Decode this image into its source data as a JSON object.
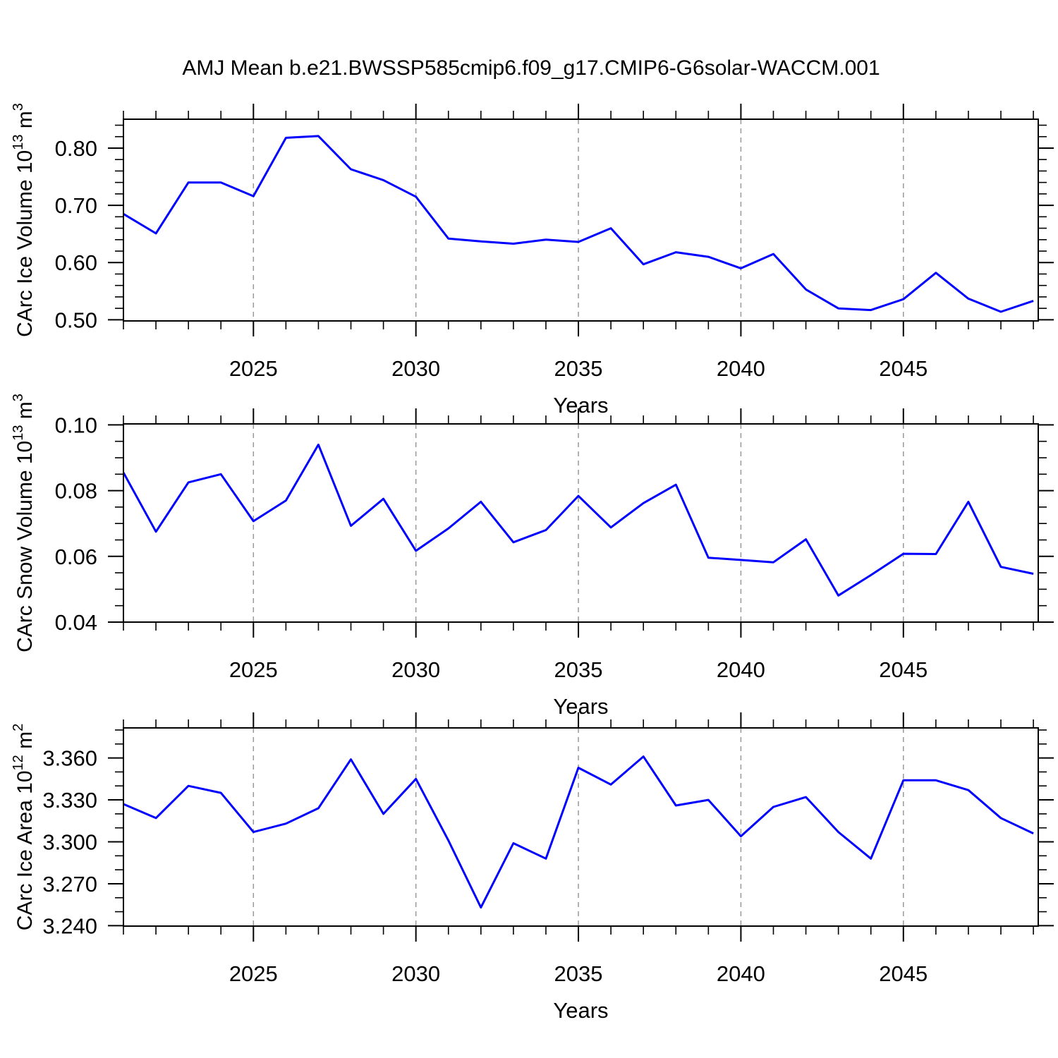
{
  "title": "AMJ Mean b.e21.BWSSP585cmip6.f09_g17.CMIP6-G6solar-WACCM.001",
  "style": {
    "line_color": "#0000ff",
    "grid_color": "#999999",
    "frame_color": "#000000",
    "background": "#ffffff"
  },
  "x_axis": {
    "label": "Years",
    "range": [
      2021,
      2049.15
    ],
    "major_ticks": [
      2025,
      2030,
      2035,
      2040,
      2045
    ],
    "major_tick_labels": [
      "2025",
      "2030",
      "2035",
      "2040",
      "2045"
    ],
    "minor_step": 1
  },
  "years": [
    2021,
    2022,
    2023,
    2024,
    2025,
    2026,
    2027,
    2028,
    2029,
    2030,
    2031,
    2032,
    2033,
    2034,
    2035,
    2036,
    2037,
    2038,
    2039,
    2040,
    2041,
    2042,
    2043,
    2044,
    2045,
    2046,
    2047,
    2048,
    2049
  ],
  "chart_data": [
    {
      "type": "line",
      "name": "ice-volume",
      "ylabel_parts": [
        {
          "t": "CArc Ice Volume 10"
        },
        {
          "t": "13",
          "sup": true
        },
        {
          "t": " m"
        },
        {
          "t": "3",
          "sup": true
        }
      ],
      "ylabel_plain": "CArc Ice Volume 10^13 m^3",
      "xlabel": "Years",
      "ylim": [
        0.498,
        0.8505
      ],
      "yticks": [
        0.5,
        0.6,
        0.7,
        0.8
      ],
      "ytick_labels": [
        "0.50",
        "0.60",
        "0.70",
        "0.80"
      ],
      "yminor_step": 0.02,
      "grid": true,
      "values": [
        0.685,
        0.651,
        0.74,
        0.74,
        0.716,
        0.818,
        0.821,
        0.763,
        0.744,
        0.715,
        0.642,
        0.637,
        0.633,
        0.64,
        0.636,
        0.66,
        0.597,
        0.618,
        0.61,
        0.59,
        0.615,
        0.553,
        0.52,
        0.517,
        0.536,
        0.582,
        0.537,
        0.514,
        0.533
      ]
    },
    {
      "type": "line",
      "name": "snow-volume",
      "ylabel_parts": [
        {
          "t": "CArc Snow Volume 10"
        },
        {
          "t": "13",
          "sup": true
        },
        {
          "t": " m"
        },
        {
          "t": "3",
          "sup": true
        }
      ],
      "ylabel_plain": "CArc Snow Volume 10^13 m^3",
      "xlabel": "Years",
      "ylim": [
        0.04,
        0.1003
      ],
      "yticks": [
        0.04,
        0.06,
        0.08,
        0.1
      ],
      "ytick_labels": [
        "0.04",
        "0.06",
        "0.08",
        "0.10"
      ],
      "yminor_step": 0.005,
      "grid": true,
      "values": [
        0.0855,
        0.0675,
        0.0825,
        0.085,
        0.0707,
        0.077,
        0.094,
        0.0693,
        0.0775,
        0.0617,
        0.0685,
        0.0766,
        0.0643,
        0.068,
        0.0784,
        0.0688,
        0.0762,
        0.0818,
        0.0596,
        0.0589,
        0.0582,
        0.0652,
        0.0481,
        0.0543,
        0.0608,
        0.0607,
        0.0766,
        0.0568,
        0.0547
      ]
    },
    {
      "type": "line",
      "name": "ice-area",
      "ylabel_parts": [
        {
          "t": "CArc Ice Area 10"
        },
        {
          "t": "12",
          "sup": true
        },
        {
          "t": " m"
        },
        {
          "t": "2",
          "sup": true
        }
      ],
      "ylabel_plain": "CArc Ice Area 10^12 m^2",
      "xlabel": "Years",
      "ylim": [
        3.2397,
        3.3815
      ],
      "yticks": [
        3.24,
        3.27,
        3.3,
        3.33,
        3.36
      ],
      "ytick_labels": [
        "3.240",
        "3.270",
        "3.300",
        "3.330",
        "3.360"
      ],
      "yminor_step": 0.01,
      "grid": true,
      "values": [
        3.327,
        3.317,
        3.34,
        3.335,
        3.307,
        3.313,
        3.324,
        3.359,
        3.32,
        3.345,
        3.301,
        3.253,
        3.299,
        3.288,
        3.353,
        3.341,
        3.361,
        3.326,
        3.33,
        3.304,
        3.325,
        3.332,
        3.307,
        3.288,
        3.344,
        3.344,
        3.337,
        3.317,
        3.306
      ]
    }
  ]
}
